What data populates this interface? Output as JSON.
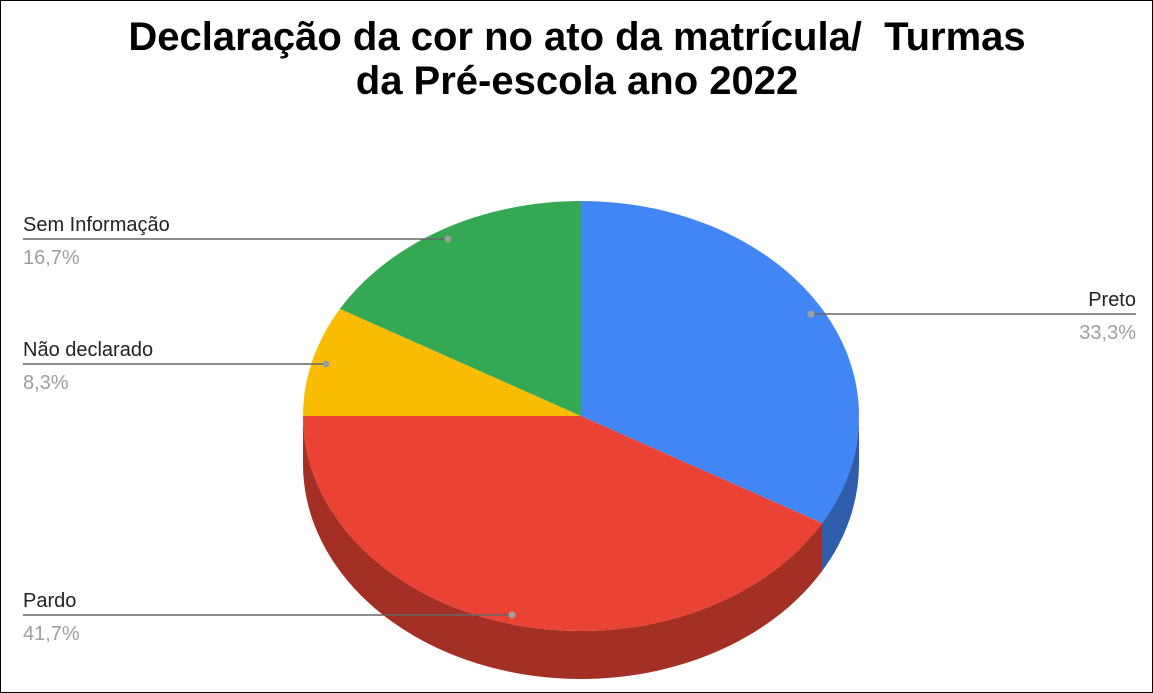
{
  "chart_data": {
    "type": "pie",
    "title": "Declaração da cor no ato da matrícula/  Turmas da Pré-escola ano 2022",
    "categories": [
      "Preto",
      "Pardo",
      "Não declarado",
      "Sem Informação"
    ],
    "values": [
      33.3,
      41.7,
      8.3,
      16.7
    ],
    "value_labels": [
      "33,3%",
      "41,7%",
      "8,3%",
      "16,7%"
    ],
    "colors": [
      "#4285f4",
      "#ea4335",
      "#fbbc04",
      "#34a853"
    ],
    "three_d": true
  }
}
